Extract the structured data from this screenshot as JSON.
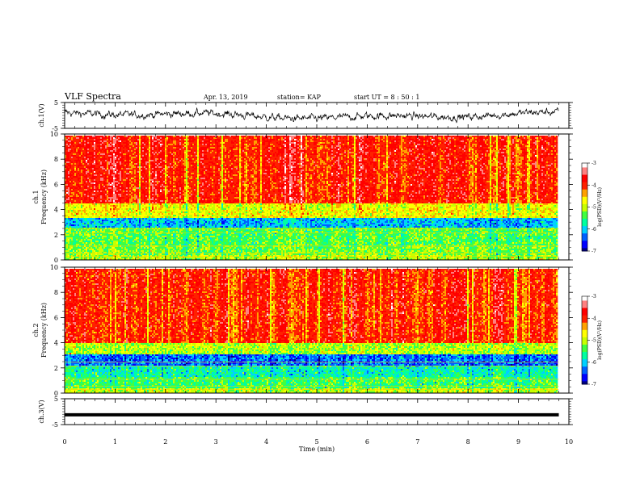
{
  "header": {
    "title": "VLF Spectra",
    "date": "Apr. 13, 2019",
    "station": "station= KAP",
    "start": "start  UT =  8 : 50 : 1"
  },
  "chart_data": [
    {
      "type": "line",
      "panel": "ch1-waveform",
      "ylabel": "ch.1(V)",
      "ylim": [
        -5,
        5
      ],
      "yticks": [
        "5",
        "-5"
      ],
      "color": "#000000",
      "description_values": "dense noisy trace approx within -2.5..2.5 V"
    },
    {
      "type": "heatmap",
      "panel": "ch1-spectrogram",
      "ylabel": "ch.1\nFrequency (kHz)",
      "ylim": [
        0,
        10
      ],
      "yticks": [
        "0",
        "2",
        "4",
        "6",
        "8",
        "10"
      ],
      "colorbar": {
        "label": "log(PSD)(V²/Hz)",
        "range": [
          -7,
          -3
        ],
        "ticks": [
          "-3",
          "-4",
          "-5",
          "-6",
          "-7"
        ]
      },
      "bands_khz": [
        [
          0,
          0.4,
          -5.0
        ],
        [
          0.4,
          1.2,
          -5.2
        ],
        [
          1.2,
          2.6,
          -5.3
        ],
        [
          2.6,
          3.3,
          -6.0
        ],
        [
          3.3,
          4.5,
          -4.7
        ],
        [
          4.5,
          9.9,
          -3.8
        ]
      ]
    },
    {
      "type": "heatmap",
      "panel": "ch2-spectrogram",
      "ylabel": "ch.2\nFrequency (kHz)",
      "ylim": [
        0,
        10
      ],
      "yticks": [
        "0",
        "2",
        "4",
        "6",
        "8",
        "10"
      ],
      "colorbar": {
        "label": "log(PSD)(V²/Hz)",
        "range": [
          -7,
          -3
        ],
        "ticks": [
          "-3",
          "-4",
          "-5",
          "-6",
          "-7"
        ]
      },
      "bands_khz": [
        [
          0,
          0.4,
          -5.0
        ],
        [
          0.4,
          1.3,
          -5.4
        ],
        [
          1.3,
          2.2,
          -5.7
        ],
        [
          2.2,
          3.1,
          -6.3
        ],
        [
          3.1,
          4.0,
          -5.0
        ],
        [
          4.0,
          9.9,
          -3.9
        ]
      ]
    },
    {
      "type": "line",
      "panel": "ch3-waveform",
      "ylabel": "ch.3(V)",
      "ylim": [
        -5,
        5
      ],
      "yticks": [
        "5",
        "-5"
      ],
      "y": [
        -1.2,
        -1.2
      ],
      "x": [
        0,
        9.8
      ],
      "color": "#000000"
    }
  ],
  "xaxis": {
    "label": "Time (min)",
    "xlim": [
      0,
      10
    ],
    "ticks": [
      "0",
      "1",
      "2",
      "3",
      "4",
      "5",
      "6",
      "7",
      "8",
      "9",
      "10"
    ],
    "data_end": 9.8
  },
  "colormap": [
    "#000080",
    "#0000ff",
    "#0060ff",
    "#00d0ff",
    "#00ffa0",
    "#40ff40",
    "#c8ff00",
    "#ffff00",
    "#ffa000",
    "#ff2000",
    "#ff0000",
    "#ff8080",
    "#ffffff"
  ]
}
